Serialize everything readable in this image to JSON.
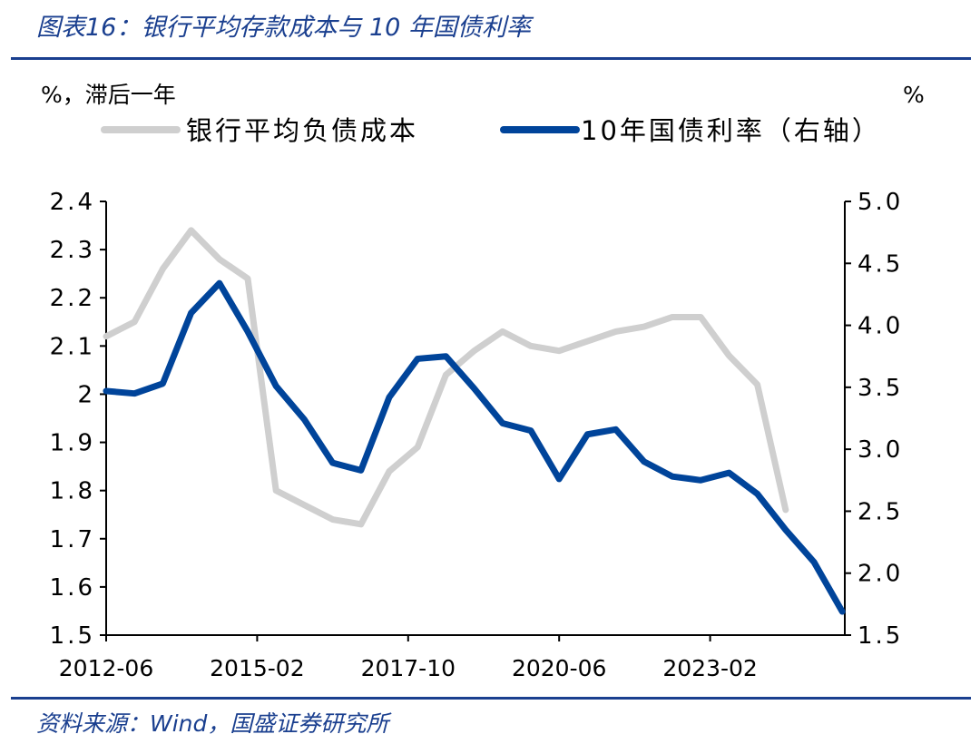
{
  "title": "图表16：银行平均存款成本与 10 年国债利率",
  "source": "资料来源：Wind，国盛证券研究所",
  "colors": {
    "accent": "#1a3f8f",
    "series_gray": "#cfcfcf",
    "series_blue": "#00449a"
  },
  "chart_data": {
    "type": "line",
    "left_unit_label": "%，滞后一年",
    "right_unit_label": "%",
    "grid": false,
    "legend_placement": "top",
    "x": [
      "2012-06",
      "2012-12",
      "2013-06",
      "2013-12",
      "2014-06",
      "2014-12",
      "2015-06",
      "2015-12",
      "2016-06",
      "2016-12",
      "2017-06",
      "2017-12",
      "2018-06",
      "2018-12",
      "2019-06",
      "2019-12",
      "2020-06",
      "2020-12",
      "2021-06",
      "2021-12",
      "2022-06",
      "2022-12",
      "2023-06",
      "2023-12",
      "2024-06",
      "2024-12",
      "2025-06"
    ],
    "x_ticks": [
      "2012-06",
      "2015-02",
      "2017-10",
      "2020-06",
      "2023-02"
    ],
    "y_left": {
      "range": [
        1.5,
        2.4
      ],
      "ticks": [
        "1.5",
        "1.6",
        "1.7",
        "1.8",
        "1.9",
        "2",
        "2.1",
        "2.2",
        "2.3",
        "2.4"
      ]
    },
    "y_right": {
      "range": [
        1.5,
        5.0
      ],
      "ticks": [
        "1.5",
        "2.0",
        "2.5",
        "3.0",
        "3.5",
        "4.0",
        "4.5",
        "5.0"
      ]
    },
    "series": [
      {
        "name": "银行平均负债成本",
        "axis": "left",
        "color": "#cfcfcf",
        "values": [
          2.12,
          2.15,
          2.26,
          2.34,
          2.28,
          2.24,
          1.8,
          1.77,
          1.74,
          1.73,
          1.84,
          1.89,
          2.04,
          2.09,
          2.13,
          2.1,
          2.09,
          2.11,
          2.13,
          2.14,
          2.16,
          2.16,
          2.08,
          2.02,
          1.76,
          null,
          null
        ]
      },
      {
        "name": "10年国债利率（右轴）",
        "axis": "right",
        "color": "#00449a",
        "values": [
          3.47,
          3.45,
          3.53,
          4.1,
          4.34,
          3.95,
          3.51,
          3.24,
          2.89,
          2.83,
          3.42,
          3.73,
          3.75,
          3.49,
          3.21,
          3.15,
          2.76,
          3.12,
          3.16,
          2.9,
          2.78,
          2.75,
          2.81,
          2.64,
          2.35,
          2.09,
          1.69
        ]
      }
    ]
  }
}
